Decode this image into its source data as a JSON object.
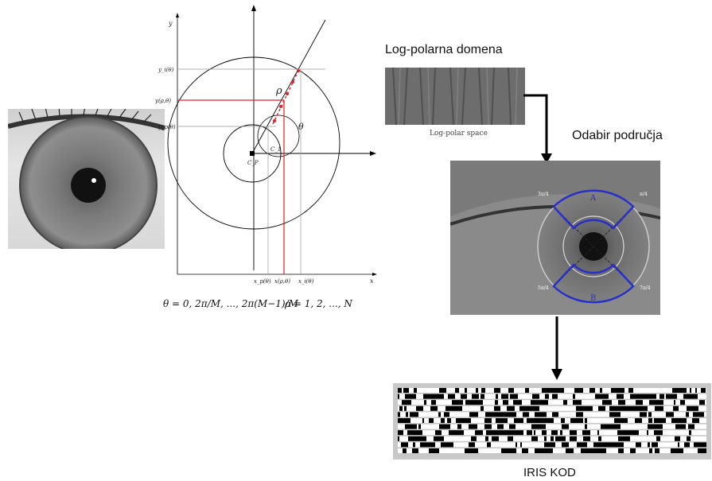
{
  "labels": {
    "log_polar_title": "Log-polarna domena",
    "log_polar_caption": "Log-polar space",
    "region_title": "Odabir područja",
    "iris_code_title": "IRIS KOD"
  },
  "polar_diagram": {
    "y_axis": "y",
    "x_axis": "x",
    "center_label": "C_P",
    "c1_label": "C_1",
    "rho_label": "ρ",
    "theta_label": "θ",
    "y_ticks": [
      "y_i(θ)",
      "y(ρ,θ)",
      "y_p(θ)"
    ],
    "x_ticks": [
      "x_p(θ)",
      "x(ρ,θ)",
      "x_i(θ)"
    ]
  },
  "formula": {
    "theta_part": "θ = 0, 2π/M, ..., 2π(M−1)/M",
    "rho_part": "ρ = 1, 2, ..., N"
  },
  "region_marks": {
    "region_a": "A",
    "region_b": "B",
    "angle_labels": [
      "π/4",
      "3π/4",
      "5π/4",
      "7π/4"
    ]
  },
  "colors": {
    "highlight_red": "#e0202a",
    "region_blue": "#2630c8",
    "arrow": "#000000"
  }
}
